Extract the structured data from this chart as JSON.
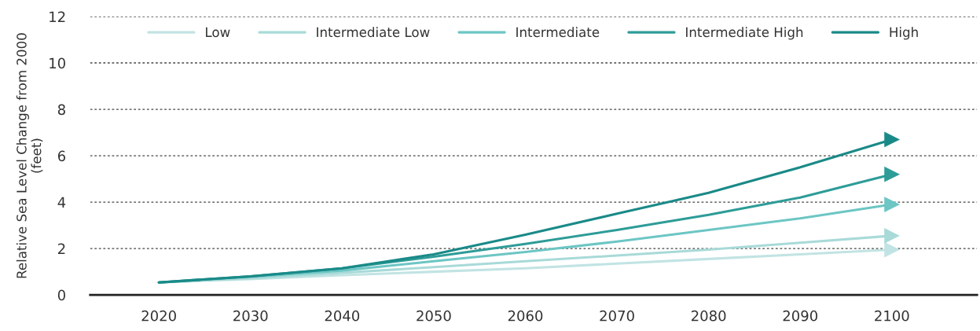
{
  "chart_data": {
    "type": "line",
    "ylabel": "Relative Sea Level Change from 2000\n(feet)",
    "x": [
      2020,
      2030,
      2040,
      2050,
      2060,
      2070,
      2080,
      2090,
      2100
    ],
    "series": [
      {
        "name": "Low",
        "color": "#c2e3e3",
        "values": [
          0.54,
          0.68,
          0.85,
          1.0,
          1.15,
          1.35,
          1.55,
          1.75,
          1.95
        ]
      },
      {
        "name": "Intermediate Low",
        "color": "#a8dad8",
        "values": [
          0.54,
          0.72,
          0.95,
          1.2,
          1.45,
          1.7,
          1.95,
          2.25,
          2.55
        ]
      },
      {
        "name": "Intermediate",
        "color": "#6cc6c4",
        "values": [
          0.54,
          0.78,
          1.05,
          1.45,
          1.85,
          2.3,
          2.8,
          3.3,
          3.9
        ]
      },
      {
        "name": "Intermediate High",
        "color": "#2e9c98",
        "values": [
          0.54,
          0.8,
          1.15,
          1.65,
          2.2,
          2.8,
          3.45,
          4.2,
          5.2
        ]
      },
      {
        "name": "High",
        "color": "#1a8a88",
        "values": [
          0.54,
          0.8,
          1.15,
          1.75,
          2.6,
          3.5,
          4.4,
          5.5,
          6.7
        ]
      }
    ],
    "xlim": [
      2012.5,
      2109.3
    ],
    "ylim": [
      0,
      12
    ],
    "xticks": [
      2020,
      2030,
      2040,
      2050,
      2060,
      2070,
      2080,
      2090,
      2100
    ],
    "yticks": [
      0,
      2,
      4,
      6,
      8,
      10,
      12
    ],
    "grid": "y",
    "legend": "top",
    "line_style": "solid"
  }
}
